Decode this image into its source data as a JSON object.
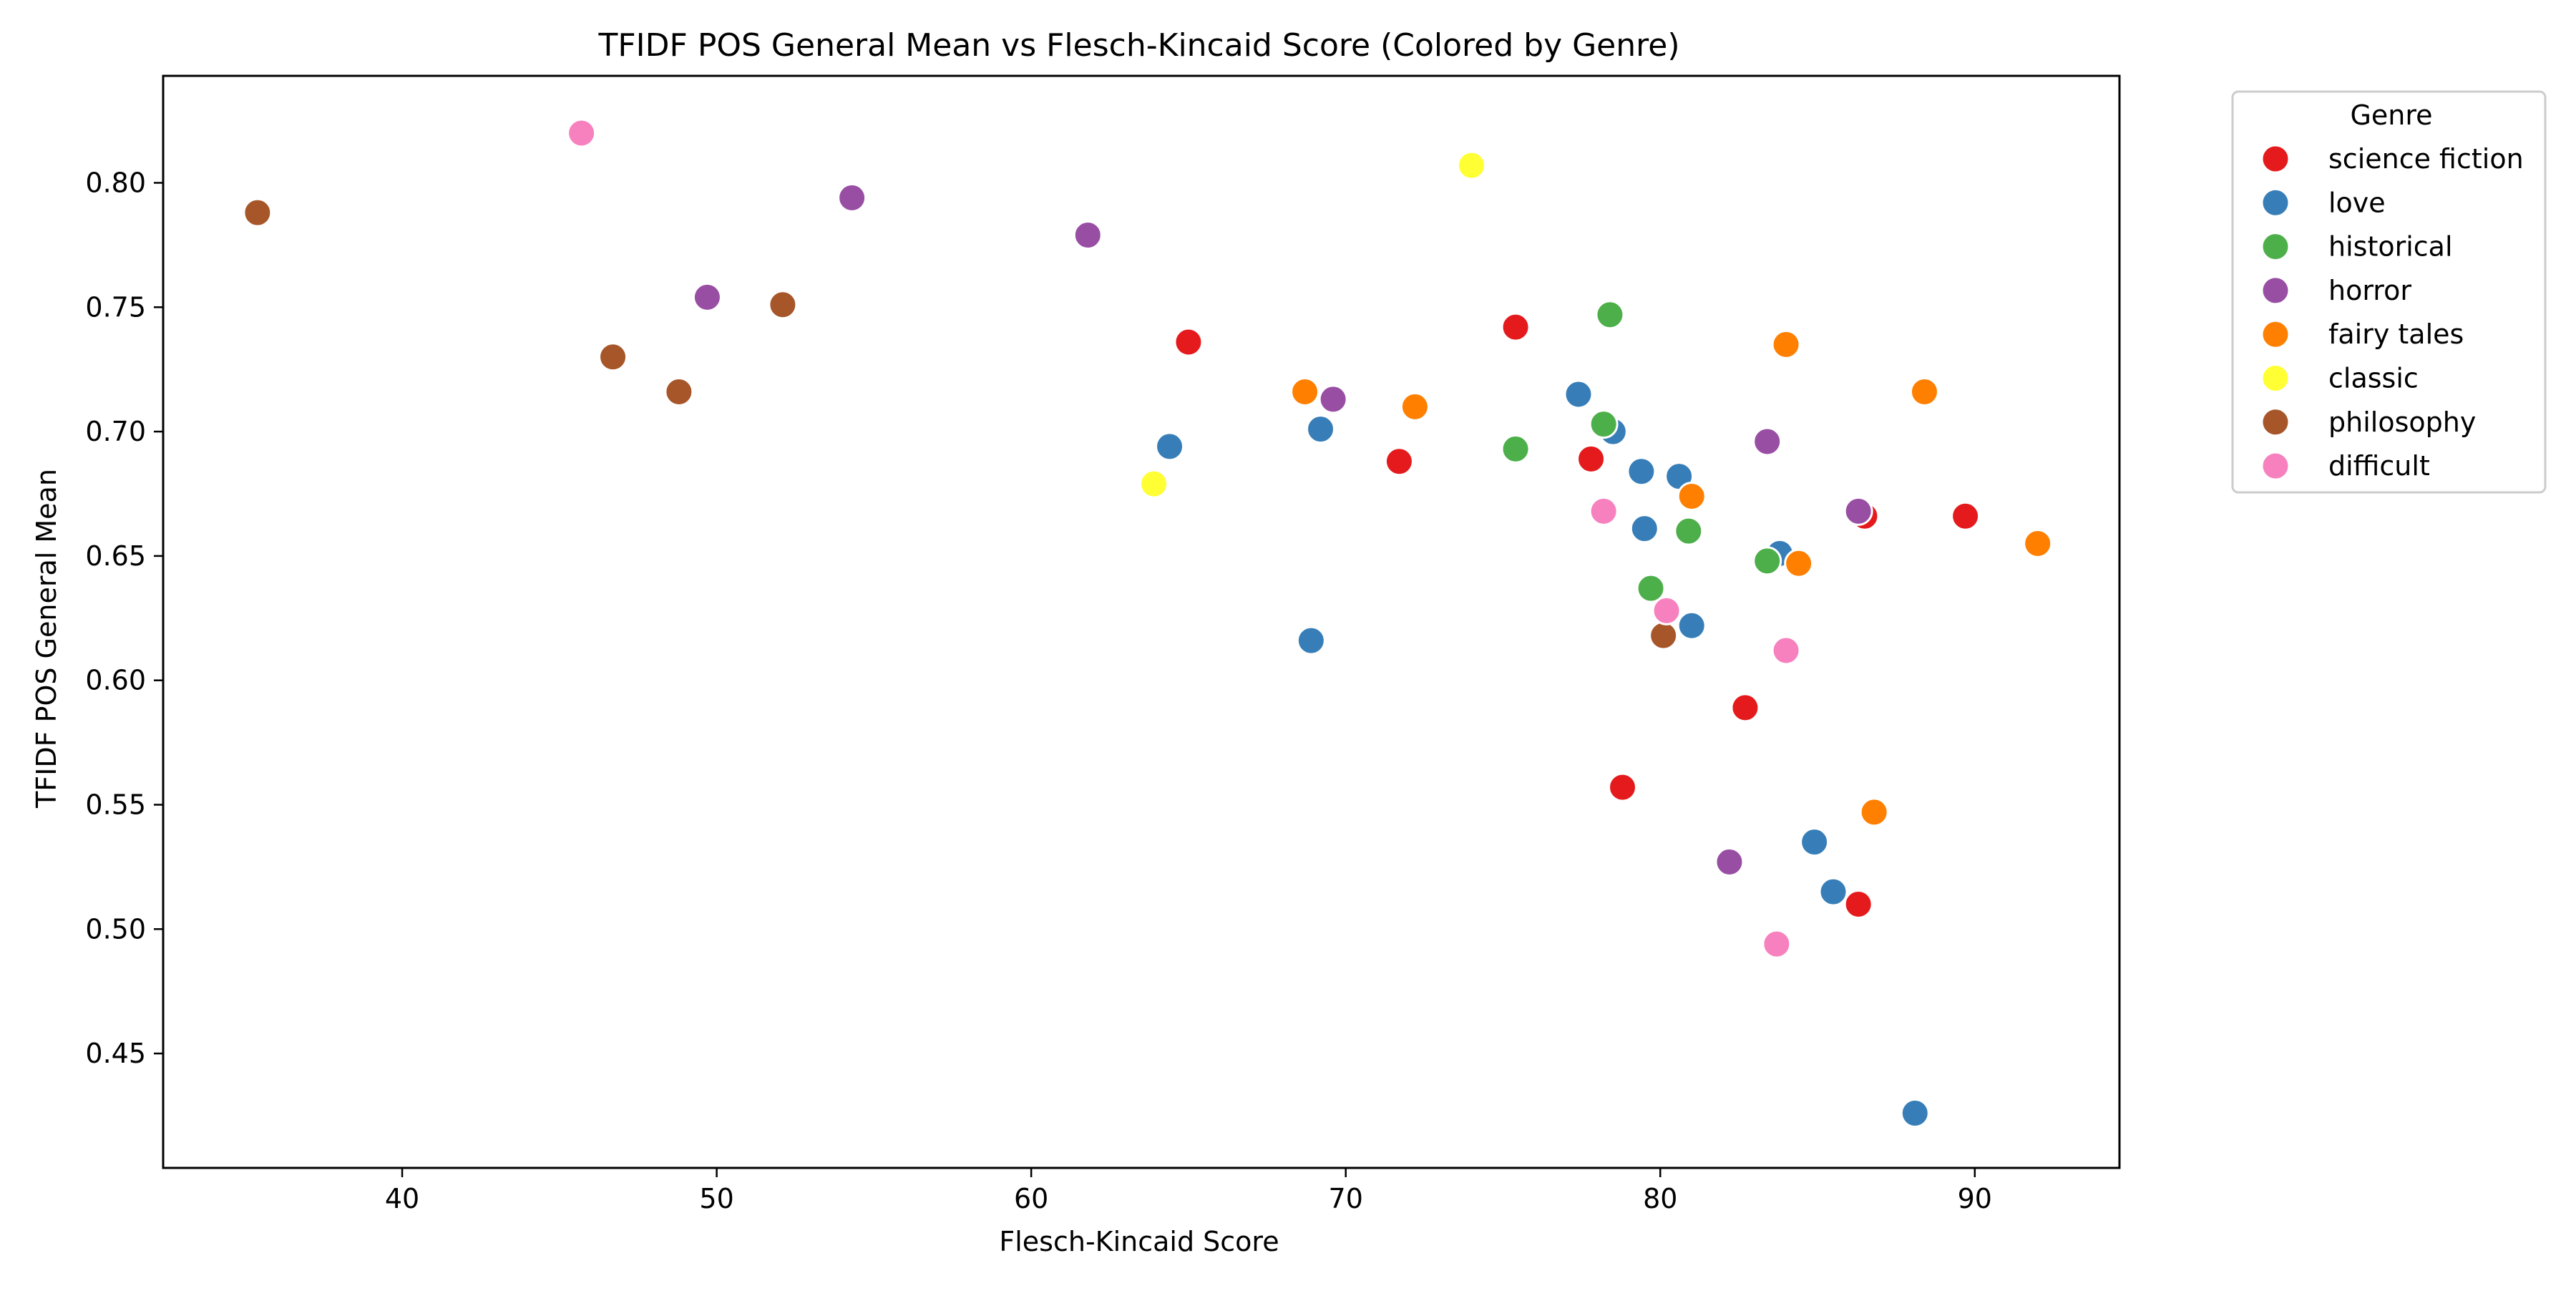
{
  "chart_data": {
    "type": "scatter",
    "title": "TFIDF POS General Mean vs Flesch-Kincaid Score (Colored by Genre)",
    "xlabel": "Flesch-Kincaid Score",
    "ylabel": "TFIDF POS General Mean",
    "xlim": [
      32.4,
      94.6
    ],
    "ylim": [
      0.404,
      0.843
    ],
    "xticks": [
      40,
      50,
      60,
      70,
      80,
      90
    ],
    "yticks": [
      0.45,
      0.5,
      0.55,
      0.6,
      0.65,
      0.7,
      0.75,
      0.8
    ],
    "xtick_labels": [
      "40",
      "50",
      "60",
      "70",
      "80",
      "90"
    ],
    "ytick_labels": [
      "0.45",
      "0.50",
      "0.55",
      "0.60",
      "0.65",
      "0.70",
      "0.75",
      "0.80"
    ],
    "grid": false,
    "legend": {
      "title": "Genre",
      "placement": "outside-upper-right"
    },
    "series": [
      {
        "name": "science fiction",
        "color": "#e41a1c",
        "points": [
          [
            65.0,
            0.736
          ],
          [
            75.4,
            0.742
          ],
          [
            71.7,
            0.688
          ],
          [
            77.8,
            0.689
          ],
          [
            86.5,
            0.666
          ],
          [
            89.7,
            0.666
          ],
          [
            82.7,
            0.589
          ],
          [
            78.8,
            0.557
          ],
          [
            86.3,
            0.51
          ]
        ]
      },
      {
        "name": "love",
        "color": "#377eb8",
        "points": [
          [
            64.4,
            0.694
          ],
          [
            69.2,
            0.701
          ],
          [
            77.4,
            0.715
          ],
          [
            78.5,
            0.7
          ],
          [
            79.4,
            0.684
          ],
          [
            80.6,
            0.682
          ],
          [
            79.5,
            0.661
          ],
          [
            83.8,
            0.651
          ],
          [
            81.0,
            0.622
          ],
          [
            68.9,
            0.616
          ],
          [
            84.9,
            0.535
          ],
          [
            85.5,
            0.515
          ],
          [
            88.1,
            0.426
          ]
        ]
      },
      {
        "name": "historical",
        "color": "#4daf4a",
        "points": [
          [
            78.4,
            0.747
          ],
          [
            78.2,
            0.703
          ],
          [
            75.4,
            0.693
          ],
          [
            80.9,
            0.66
          ],
          [
            83.4,
            0.648
          ],
          [
            79.7,
            0.637
          ]
        ]
      },
      {
        "name": "horror",
        "color": "#984ea3",
        "points": [
          [
            54.3,
            0.794
          ],
          [
            61.8,
            0.779
          ],
          [
            49.7,
            0.754
          ],
          [
            69.6,
            0.713
          ],
          [
            83.4,
            0.696
          ],
          [
            86.3,
            0.668
          ],
          [
            82.2,
            0.527
          ]
        ]
      },
      {
        "name": "fairy tales",
        "color": "#ff7f00",
        "points": [
          [
            68.7,
            0.716
          ],
          [
            72.2,
            0.71
          ],
          [
            84.0,
            0.735
          ],
          [
            88.4,
            0.716
          ],
          [
            81.0,
            0.674
          ],
          [
            92.0,
            0.655
          ],
          [
            84.4,
            0.647
          ],
          [
            86.8,
            0.547
          ]
        ]
      },
      {
        "name": "classic",
        "color": "#ffff33",
        "points": [
          [
            74.0,
            0.807
          ],
          [
            63.9,
            0.679
          ]
        ]
      },
      {
        "name": "philosophy",
        "color": "#a65628",
        "points": [
          [
            35.4,
            0.788
          ],
          [
            46.7,
            0.73
          ],
          [
            52.1,
            0.751
          ],
          [
            48.8,
            0.716
          ],
          [
            80.1,
            0.618
          ]
        ]
      },
      {
        "name": "difficult",
        "color": "#f781bf",
        "points": [
          [
            45.7,
            0.82
          ],
          [
            78.2,
            0.668
          ],
          [
            80.2,
            0.628
          ],
          [
            84.0,
            0.612
          ],
          [
            83.7,
            0.494
          ]
        ]
      }
    ]
  }
}
